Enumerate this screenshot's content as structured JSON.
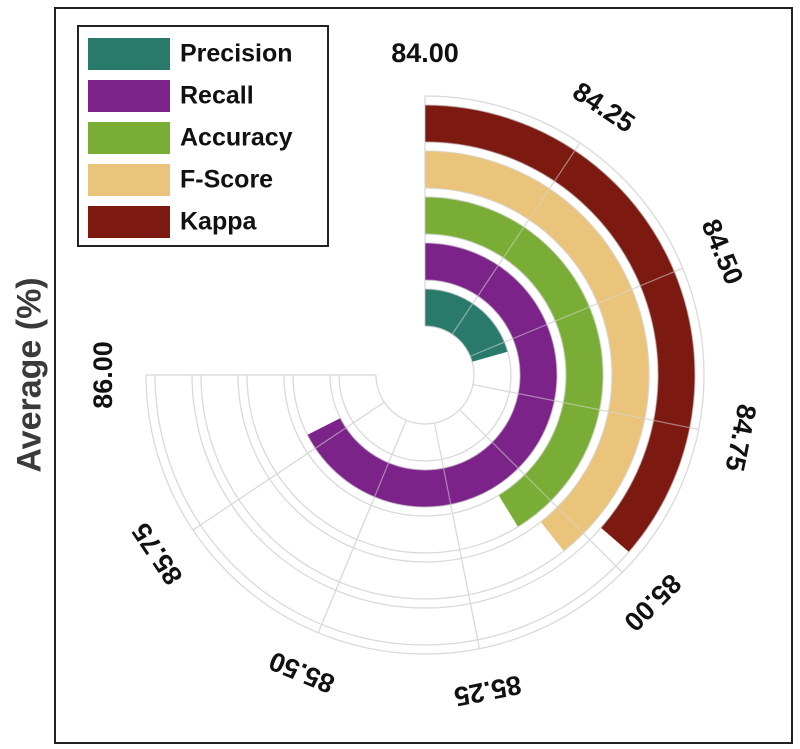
{
  "chart_data": {
    "type": "radial-bar",
    "title": "",
    "ylabel": "Average (%)",
    "axis_range": [
      84.0,
      86.0
    ],
    "tick_labels": [
      "84.00",
      "84.25",
      "84.50",
      "84.75",
      "85.00",
      "85.25",
      "85.50",
      "85.75",
      "86.00"
    ],
    "series": [
      {
        "name": "Precision",
        "value": 84.55,
        "color": "#2a7a6c"
      },
      {
        "name": "Recall",
        "value": 85.8,
        "color": "#7b2389"
      },
      {
        "name": "Accuracy",
        "value": 85.1,
        "color": "#7aad35"
      },
      {
        "name": "F-Score",
        "value": 85.05,
        "color": "#eac47a"
      },
      {
        "name": "Kappa",
        "value": 84.97,
        "color": "#7c1a12"
      }
    ],
    "legend_position": "top-left"
  }
}
